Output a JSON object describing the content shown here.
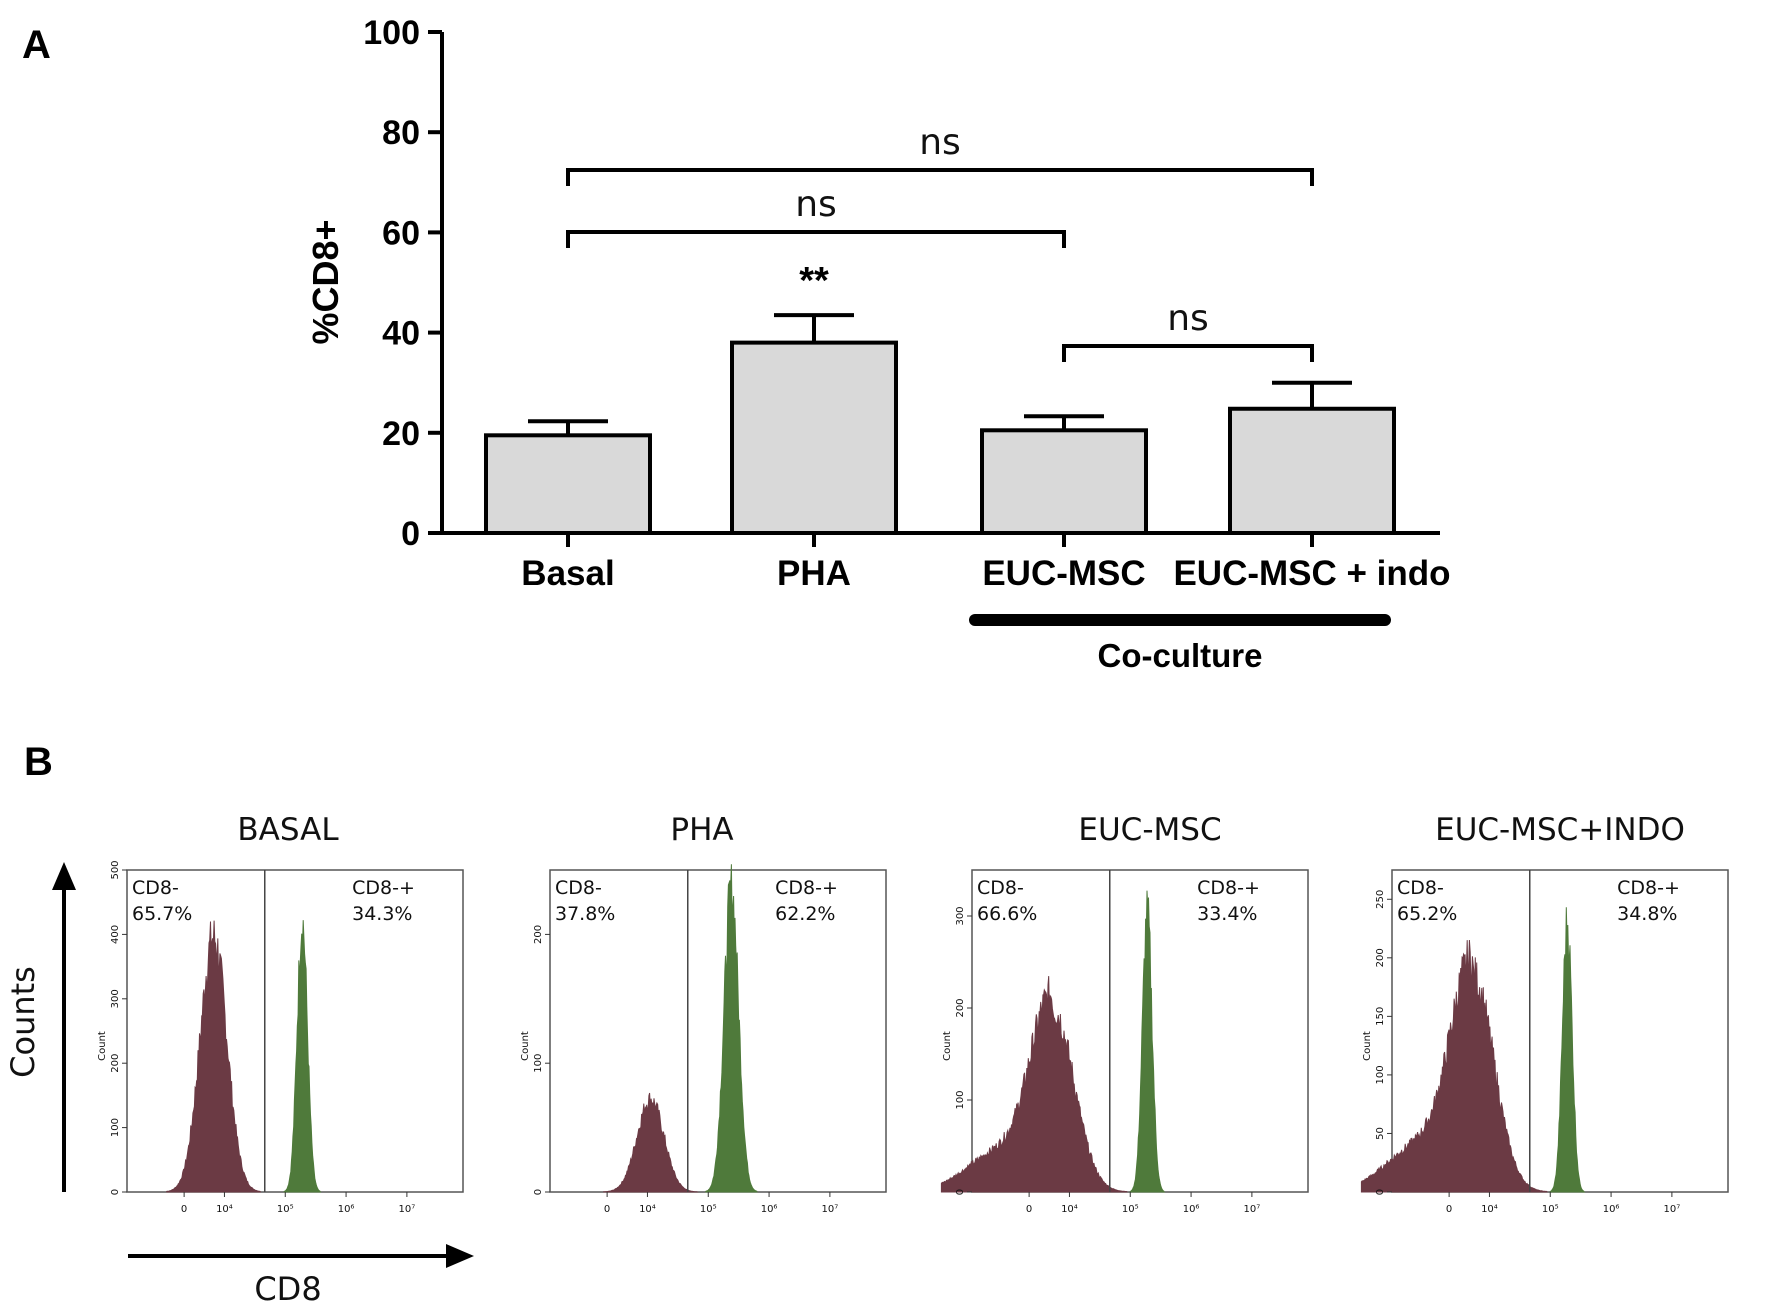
{
  "panel_a": {
    "label": "A",
    "co_culture_label": "Co-culture",
    "chart_data": {
      "type": "bar",
      "categories": [
        "Basal",
        "PHA",
        "EUC-MSC",
        "EUC-MSC + indo"
      ],
      "values": [
        19.5,
        38.0,
        20.5,
        24.8
      ],
      "errors": [
        2.8,
        5.5,
        2.8,
        5.2
      ],
      "ylabel": "%CD8+",
      "ylim": [
        0,
        100
      ],
      "yticks": [
        0,
        20,
        40,
        60,
        80,
        100
      ],
      "bar_color": "#d9d9d9",
      "significance": [
        {
          "label": "**",
          "over": 1
        },
        {
          "label": "ns",
          "from": 0,
          "to": 3
        },
        {
          "label": "ns",
          "from": 0,
          "to": 2
        },
        {
          "label": "ns",
          "from": 2,
          "to": 3
        }
      ]
    }
  },
  "panel_b": {
    "label": "B",
    "y_axis_label": "Counts",
    "x_axis_label": "CD8",
    "neg_color": "#6b3a44",
    "pos_color": "#4f7a3b",
    "chart_data": [
      {
        "type": "histogram",
        "title": "BASAL",
        "neg_label": "CD8-",
        "neg_pct": "65.7%",
        "pos_label": "CD8-+",
        "pos_pct": "34.3%",
        "ylim": [
          0,
          500
        ],
        "yticks": [
          0,
          100,
          200,
          300,
          400,
          500
        ],
        "xticks": [
          "0",
          "10⁴",
          "10⁵",
          "10⁶",
          "10⁷"
        ],
        "neg_peak": {
          "center": 3.82,
          "height": 395,
          "width": 0.22
        },
        "pos_peak": {
          "center": 5.28,
          "height": 420,
          "width": 0.085
        },
        "y_title": "Count"
      },
      {
        "type": "histogram",
        "title": "PHA",
        "neg_label": "CD8-",
        "neg_pct": "37.8%",
        "pos_label": "CD8-+",
        "pos_pct": "62.2%",
        "ylim": [
          0,
          250
        ],
        "yticks": [
          0,
          100,
          200
        ],
        "xticks": [
          "0",
          "10⁴",
          "10⁵",
          "10⁶",
          "10⁷"
        ],
        "neg_peak": {
          "center": 4.05,
          "height": 72,
          "width": 0.22
        },
        "pos_peak": {
          "center": 5.38,
          "height": 235,
          "width": 0.12
        },
        "y_title": "Count"
      },
      {
        "type": "histogram",
        "title": "EUC-MSC",
        "neg_label": "CD8-",
        "neg_pct": "66.6%",
        "pos_label": "CD8-+",
        "pos_pct": "33.4%",
        "ylim": [
          0,
          350
        ],
        "yticks": [
          0,
          100,
          200,
          300
        ],
        "xticks": [
          "0",
          "10⁴",
          "10⁵",
          "10⁶",
          "10⁷"
        ],
        "neg_peak": {
          "center": 3.72,
          "height": 200,
          "width": 0.35
        },
        "pos_peak": {
          "center": 5.28,
          "height": 302,
          "width": 0.08
        },
        "y_title": "Count"
      },
      {
        "type": "histogram",
        "title": "EUC-MSC+INDO",
        "neg_label": "CD8-",
        "neg_pct": "65.2%",
        "pos_label": "CD8-+",
        "pos_pct": "34.8%",
        "ylim": [
          0,
          275
        ],
        "yticks": [
          0,
          50,
          100,
          150,
          200,
          250
        ],
        "xticks": [
          "0",
          "10⁴",
          "10⁵",
          "10⁶",
          "10⁷"
        ],
        "neg_peak": {
          "center": 3.72,
          "height": 185,
          "width": 0.35
        },
        "pos_peak": {
          "center": 5.28,
          "height": 230,
          "width": 0.08
        },
        "y_title": "Count"
      }
    ]
  }
}
